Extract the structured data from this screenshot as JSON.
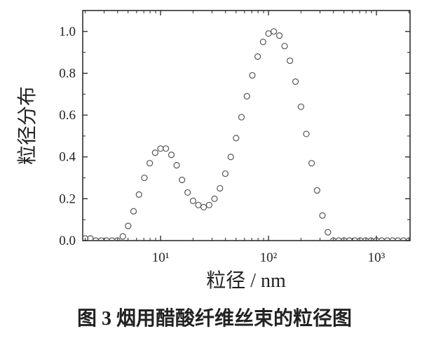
{
  "chart_data": {
    "type": "scatter",
    "caption": "图 3  烟用醋酸纤维丝束的粒径图",
    "xlabel": "粒径 / nm",
    "ylabel": "粒径分布",
    "xscale": "log",
    "xlim": [
      1.9,
      2050
    ],
    "ylim": [
      0,
      1.1
    ],
    "xticks": [
      {
        "value": 10,
        "label": "10¹"
      },
      {
        "value": 100,
        "label": "10²"
      },
      {
        "value": 1000,
        "label": "10³"
      }
    ],
    "yticks": [
      {
        "value": 0,
        "label": "0.0"
      },
      0.2,
      0.4,
      0.6,
      0.8,
      {
        "value": 1,
        "label": "1.0"
      }
    ],
    "marker_color": "#555555",
    "x": [
      2.0,
      2.24,
      2.51,
      2.82,
      3.16,
      3.55,
      3.98,
      4.47,
      5.01,
      5.62,
      6.31,
      7.08,
      7.94,
      8.91,
      10,
      11.2,
      12.6,
      14.1,
      15.8,
      17.8,
      20,
      22.4,
      25.1,
      28.2,
      31.6,
      35.5,
      39.8,
      44.7,
      50.1,
      56.2,
      63.1,
      70.8,
      79.4,
      89.1,
      100,
      112,
      126,
      141,
      158,
      178,
      200,
      224,
      251,
      282,
      316,
      355,
      398,
      447,
      501,
      562,
      631,
      708,
      794,
      891,
      1000,
      1120,
      1260,
      1410,
      1580,
      1780,
      2000
    ],
    "values": [
      0.01,
      0.01,
      0,
      0,
      0,
      0,
      0,
      0.02,
      0.07,
      0.14,
      0.22,
      0.3,
      0.37,
      0.42,
      0.44,
      0.44,
      0.41,
      0.36,
      0.29,
      0.23,
      0.19,
      0.17,
      0.16,
      0.17,
      0.2,
      0.25,
      0.32,
      0.4,
      0.49,
      0.59,
      0.69,
      0.79,
      0.88,
      0.95,
      0.99,
      1.0,
      0.98,
      0.93,
      0.86,
      0.76,
      0.64,
      0.51,
      0.37,
      0.24,
      0.12,
      0.04,
      0,
      0,
      0,
      0,
      0,
      0,
      0,
      0,
      0,
      0,
      0,
      0,
      0,
      0,
      0
    ]
  }
}
